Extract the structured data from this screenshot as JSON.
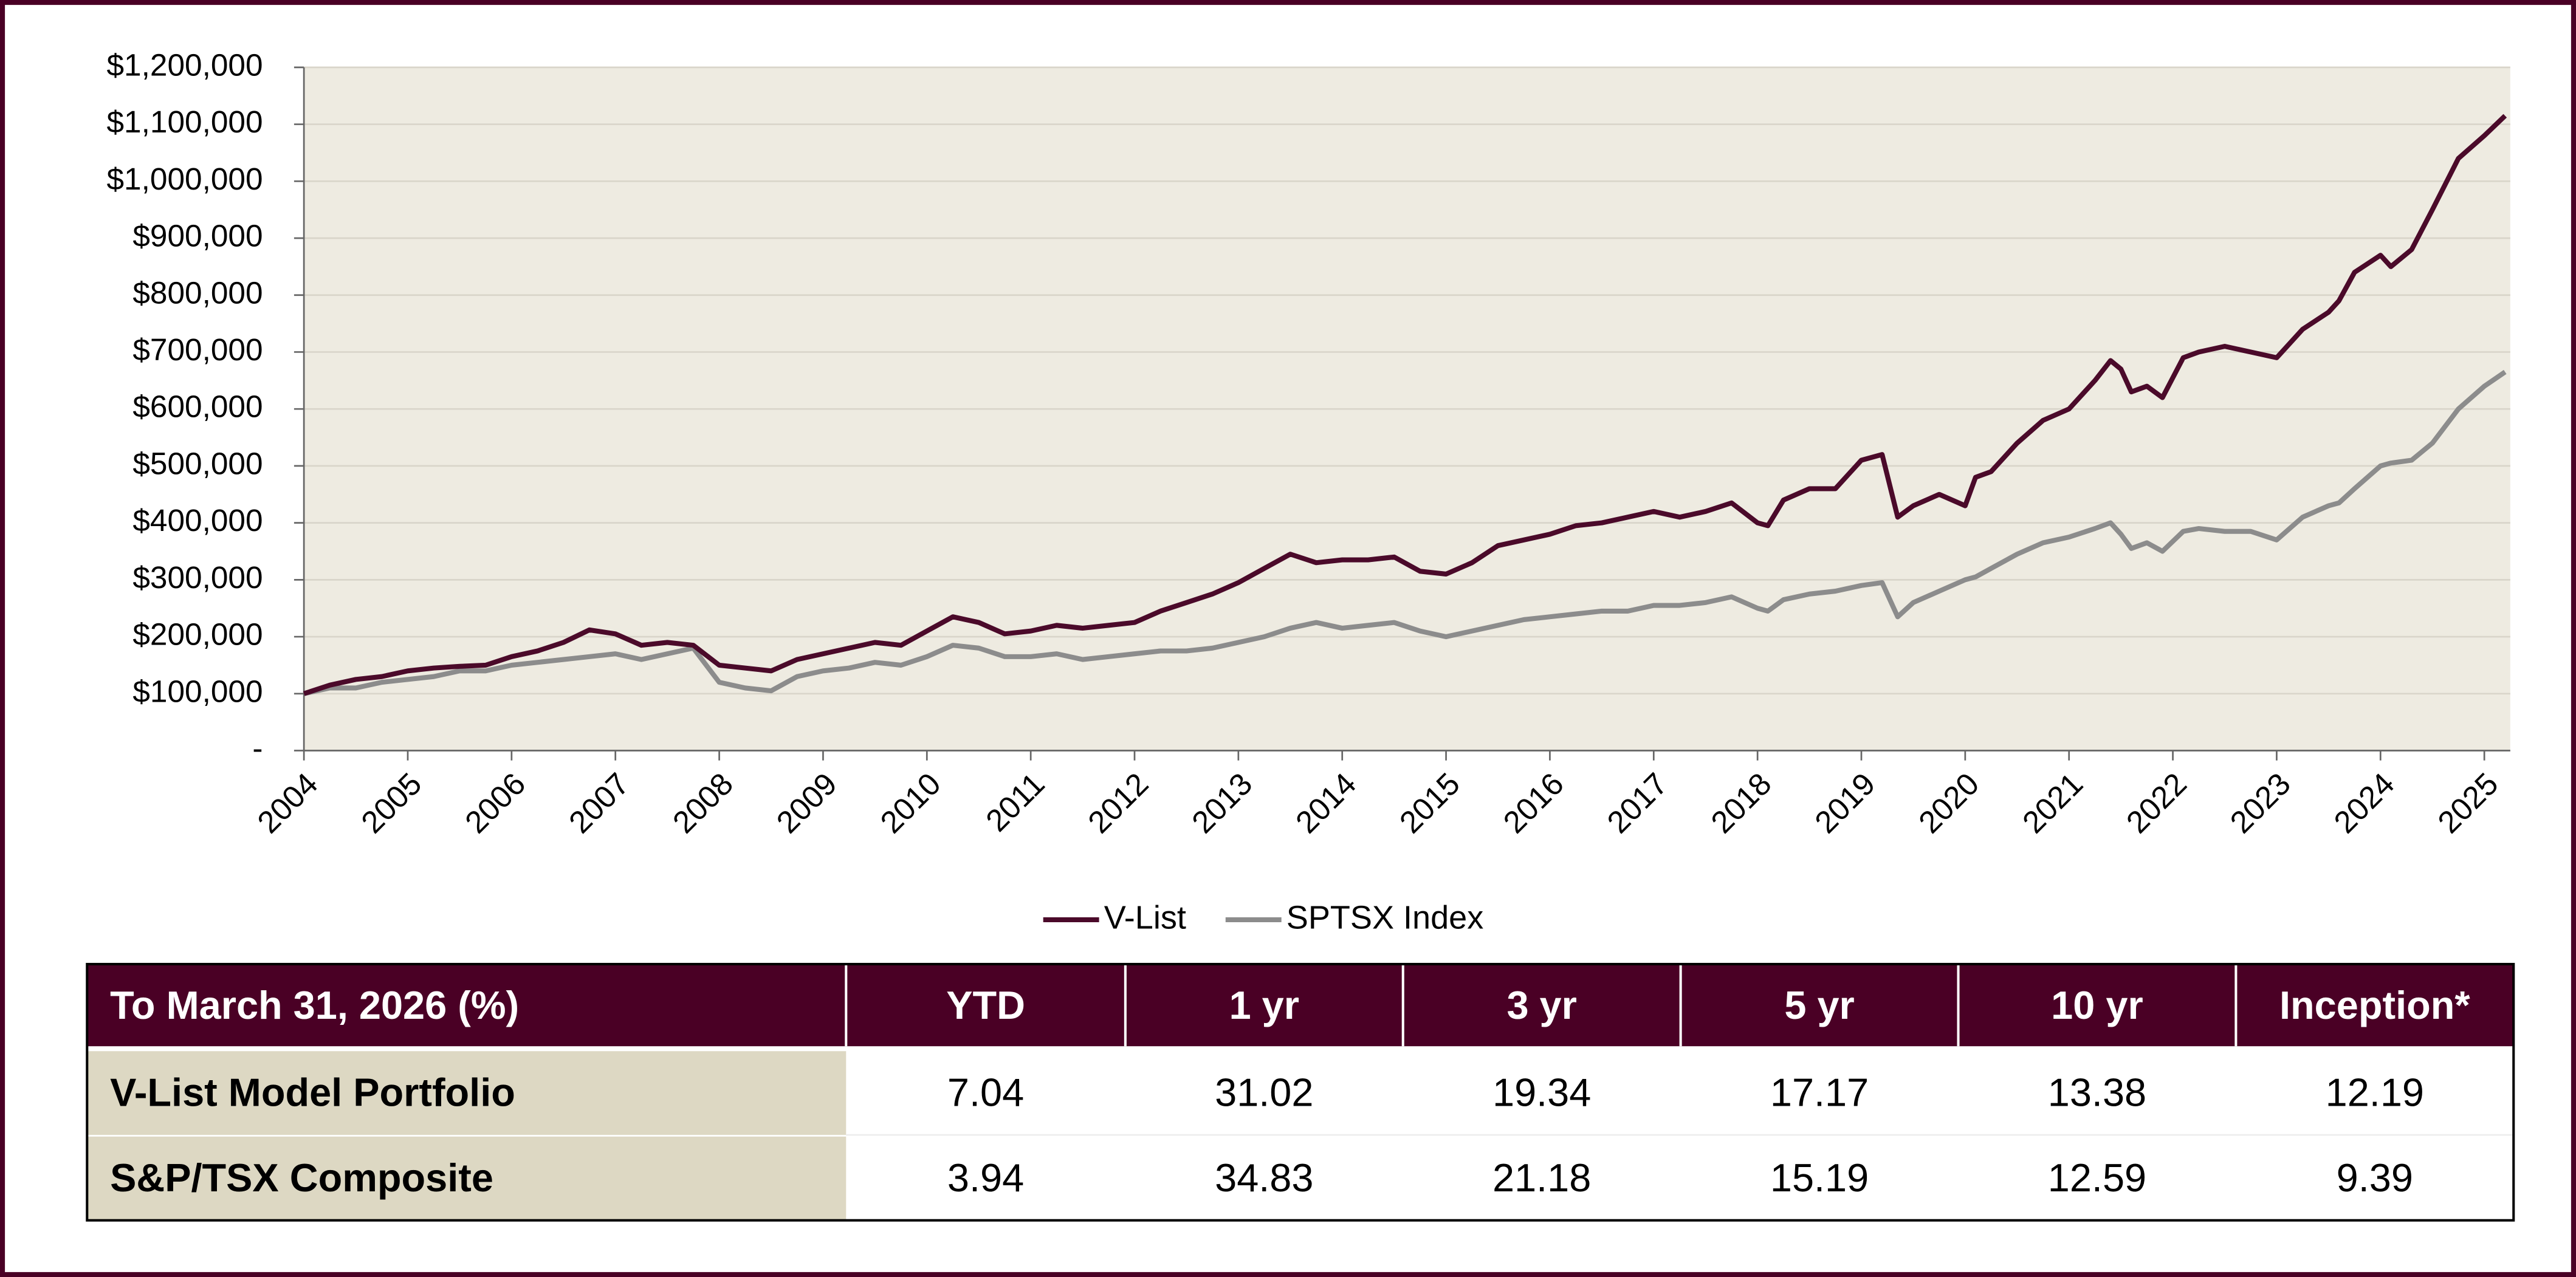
{
  "chart_data": {
    "type": "line",
    "x": [
      2004,
      2004.25,
      2004.5,
      2004.75,
      2005,
      2005.25,
      2005.5,
      2005.75,
      2006,
      2006.25,
      2006.5,
      2006.75,
      2007,
      2007.25,
      2007.5,
      2007.75,
      2008,
      2008.25,
      2008.5,
      2008.75,
      2009,
      2009.25,
      2009.5,
      2009.75,
      2010,
      2010.25,
      2010.5,
      2010.75,
      2011,
      2011.25,
      2011.5,
      2011.75,
      2012,
      2012.25,
      2012.5,
      2012.75,
      2013,
      2013.25,
      2013.5,
      2013.75,
      2014,
      2014.25,
      2014.5,
      2014.75,
      2015,
      2015.25,
      2015.5,
      2015.75,
      2016,
      2016.25,
      2016.5,
      2016.75,
      2017,
      2017.25,
      2017.5,
      2017.75,
      2018,
      2018.1,
      2018.25,
      2018.5,
      2018.75,
      2019,
      2019.2,
      2019.35,
      2019.5,
      2019.75,
      2020,
      2020.1,
      2020.25,
      2020.5,
      2020.75,
      2021,
      2021.25,
      2021.4,
      2021.5,
      2021.6,
      2021.75,
      2021.9,
      2022.1,
      2022.25,
      2022.5,
      2022.75,
      2023,
      2023.25,
      2023.5,
      2023.6,
      2023.75,
      2024,
      2024.1,
      2024.3,
      2024.5,
      2024.75,
      2025,
      2025.2
    ],
    "series": [
      {
        "name": "V-List",
        "color": "#4b0a2a",
        "values": [
          100000,
          115000,
          125000,
          130000,
          140000,
          145000,
          148000,
          150000,
          165000,
          175000,
          190000,
          212000,
          205000,
          185000,
          190000,
          185000,
          150000,
          145000,
          140000,
          160000,
          170000,
          180000,
          190000,
          185000,
          210000,
          235000,
          225000,
          205000,
          210000,
          220000,
          215000,
          220000,
          225000,
          245000,
          260000,
          275000,
          295000,
          320000,
          345000,
          330000,
          335000,
          335000,
          340000,
          315000,
          310000,
          330000,
          360000,
          370000,
          380000,
          395000,
          400000,
          410000,
          420000,
          410000,
          420000,
          435000,
          400000,
          395000,
          440000,
          460000,
          460000,
          510000,
          520000,
          410000,
          430000,
          450000,
          430000,
          480000,
          490000,
          540000,
          580000,
          600000,
          650000,
          685000,
          670000,
          630000,
          640000,
          620000,
          690000,
          700000,
          710000,
          700000,
          690000,
          740000,
          770000,
          790000,
          840000,
          870000,
          850000,
          880000,
          950000,
          1040000,
          1080000,
          1115000
        ]
      },
      {
        "name": "SPTSX Index",
        "color": "#8c8c8c",
        "values": [
          100000,
          110000,
          110000,
          120000,
          125000,
          130000,
          140000,
          140000,
          150000,
          155000,
          160000,
          165000,
          170000,
          160000,
          170000,
          180000,
          120000,
          110000,
          105000,
          130000,
          140000,
          145000,
          155000,
          150000,
          165000,
          185000,
          180000,
          165000,
          165000,
          170000,
          160000,
          165000,
          170000,
          175000,
          175000,
          180000,
          190000,
          200000,
          215000,
          225000,
          215000,
          220000,
          225000,
          210000,
          200000,
          210000,
          220000,
          230000,
          235000,
          240000,
          245000,
          245000,
          255000,
          255000,
          260000,
          270000,
          250000,
          245000,
          265000,
          275000,
          280000,
          290000,
          295000,
          235000,
          260000,
          280000,
          300000,
          305000,
          320000,
          345000,
          365000,
          375000,
          390000,
          400000,
          380000,
          355000,
          365000,
          350000,
          385000,
          390000,
          385000,
          385000,
          370000,
          410000,
          430000,
          435000,
          460000,
          500000,
          505000,
          510000,
          540000,
          600000,
          640000,
          665000
        ]
      }
    ],
    "xlim": [
      2004,
      2025.25
    ],
    "xticks": [
      2004,
      2005,
      2006,
      2007,
      2008,
      2009,
      2010,
      2011,
      2012,
      2013,
      2014,
      2015,
      2016,
      2017,
      2018,
      2019,
      2020,
      2021,
      2022,
      2023,
      2024,
      2025
    ],
    "ylim": [
      0,
      1200000
    ],
    "yticks": [
      {
        "value": 0,
        "label": "-"
      },
      {
        "value": 100000,
        "label": "$100,000"
      },
      {
        "value": 200000,
        "label": "$200,000"
      },
      {
        "value": 300000,
        "label": "$300,000"
      },
      {
        "value": 400000,
        "label": "$400,000"
      },
      {
        "value": 500000,
        "label": "$500,000"
      },
      {
        "value": 600000,
        "label": "$600,000"
      },
      {
        "value": 700000,
        "label": "$700,000"
      },
      {
        "value": 800000,
        "label": "$800,000"
      },
      {
        "value": 900000,
        "label": "$900,000"
      },
      {
        "value": 1000000,
        "label": "$1,000,000"
      },
      {
        "value": 1100000,
        "label": "$1,100,000"
      },
      {
        "value": 1200000,
        "label": "$1,200,000"
      }
    ],
    "grid": true,
    "legend": "bottom"
  },
  "table": {
    "header": [
      "To March 31, 2026 (%)",
      "YTD",
      "1 yr",
      "3 yr",
      "5 yr",
      "10 yr",
      "Inception*"
    ],
    "rows": [
      [
        "V-List Model Portfolio",
        "7.04",
        "31.02",
        "19.34",
        "17.17",
        "13.38",
        "12.19"
      ],
      [
        "S&P/TSX Composite",
        "3.94",
        "34.83",
        "21.18",
        "15.19",
        "12.59",
        "9.39"
      ]
    ]
  }
}
